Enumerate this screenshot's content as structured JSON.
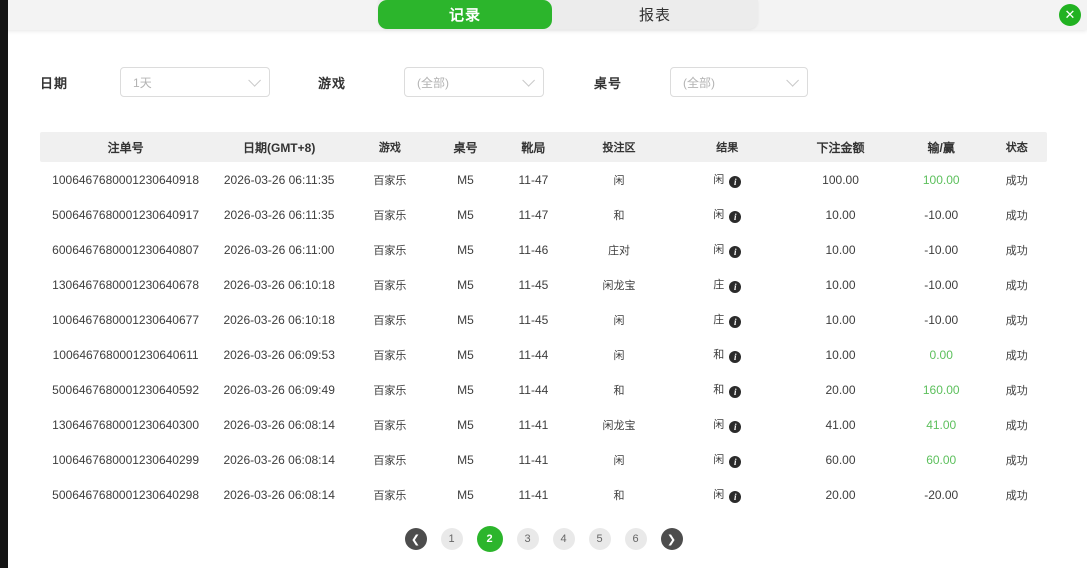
{
  "tabs": [
    {
      "label": "记录",
      "active": true
    },
    {
      "label": "报表",
      "active": false
    }
  ],
  "close_label": "✕",
  "filters": [
    {
      "label": "日期",
      "value": "1天"
    },
    {
      "label": "游戏",
      "value": "(全部)"
    },
    {
      "label": "桌号",
      "value": "(全部)"
    }
  ],
  "table": {
    "headers": [
      "注单号",
      "日期(GMT+8)",
      "游戏",
      "桌号",
      "靴局",
      "投注区",
      "结果",
      "下注金额",
      "输/赢",
      "状态"
    ],
    "info_icon_glyph": "i",
    "rows": [
      {
        "bet_id": "1006467680001230640918",
        "datetime": "2026-03-26 06:11:35",
        "game": "百家乐",
        "table_no": "M5",
        "shoe_round": "11-47",
        "bet_area": "闲",
        "result": "闲",
        "bet_amount": "100.00",
        "win_loss": "100.00",
        "win_positive": true,
        "status": "成功"
      },
      {
        "bet_id": "5006467680001230640917",
        "datetime": "2026-03-26 06:11:35",
        "game": "百家乐",
        "table_no": "M5",
        "shoe_round": "11-47",
        "bet_area": "和",
        "result": "闲",
        "bet_amount": "10.00",
        "win_loss": "-10.00",
        "win_positive": false,
        "status": "成功"
      },
      {
        "bet_id": "6006467680001230640807",
        "datetime": "2026-03-26 06:11:00",
        "game": "百家乐",
        "table_no": "M5",
        "shoe_round": "11-46",
        "bet_area": "庄对",
        "result": "闲",
        "bet_amount": "10.00",
        "win_loss": "-10.00",
        "win_positive": false,
        "status": "成功"
      },
      {
        "bet_id": "1306467680001230640678",
        "datetime": "2026-03-26 06:10:18",
        "game": "百家乐",
        "table_no": "M5",
        "shoe_round": "11-45",
        "bet_area": "闲龙宝",
        "result": "庄",
        "bet_amount": "10.00",
        "win_loss": "-10.00",
        "win_positive": false,
        "status": "成功"
      },
      {
        "bet_id": "1006467680001230640677",
        "datetime": "2026-03-26 06:10:18",
        "game": "百家乐",
        "table_no": "M5",
        "shoe_round": "11-45",
        "bet_area": "闲",
        "result": "庄",
        "bet_amount": "10.00",
        "win_loss": "-10.00",
        "win_positive": false,
        "status": "成功"
      },
      {
        "bet_id": "1006467680001230640611",
        "datetime": "2026-03-26 06:09:53",
        "game": "百家乐",
        "table_no": "M5",
        "shoe_round": "11-44",
        "bet_area": "闲",
        "result": "和",
        "bet_amount": "10.00",
        "win_loss": "0.00",
        "win_positive": true,
        "status": "成功"
      },
      {
        "bet_id": "5006467680001230640592",
        "datetime": "2026-03-26 06:09:49",
        "game": "百家乐",
        "table_no": "M5",
        "shoe_round": "11-44",
        "bet_area": "和",
        "result": "和",
        "bet_amount": "20.00",
        "win_loss": "160.00",
        "win_positive": true,
        "status": "成功"
      },
      {
        "bet_id": "1306467680001230640300",
        "datetime": "2026-03-26 06:08:14",
        "game": "百家乐",
        "table_no": "M5",
        "shoe_round": "11-41",
        "bet_area": "闲龙宝",
        "result": "闲",
        "bet_amount": "41.00",
        "win_loss": "41.00",
        "win_positive": true,
        "status": "成功"
      },
      {
        "bet_id": "1006467680001230640299",
        "datetime": "2026-03-26 06:08:14",
        "game": "百家乐",
        "table_no": "M5",
        "shoe_round": "11-41",
        "bet_area": "闲",
        "result": "闲",
        "bet_amount": "60.00",
        "win_loss": "60.00",
        "win_positive": true,
        "status": "成功"
      },
      {
        "bet_id": "5006467680001230640298",
        "datetime": "2026-03-26 06:08:14",
        "game": "百家乐",
        "table_no": "M5",
        "shoe_round": "11-41",
        "bet_area": "和",
        "result": "闲",
        "bet_amount": "20.00",
        "win_loss": "-20.00",
        "win_positive": false,
        "status": "成功"
      }
    ]
  },
  "pagination": {
    "prev_glyph": "❮",
    "next_glyph": "❯",
    "pages": [
      "1",
      "2",
      "3",
      "4",
      "5",
      "6"
    ],
    "active_page": "2"
  },
  "colors": {
    "primary_green": "#2cb52c",
    "win_green": "#5dc05d",
    "topbar_bg": "#f3f3f3",
    "header_bg": "#f0f0f0",
    "left_strip": "#141414"
  }
}
